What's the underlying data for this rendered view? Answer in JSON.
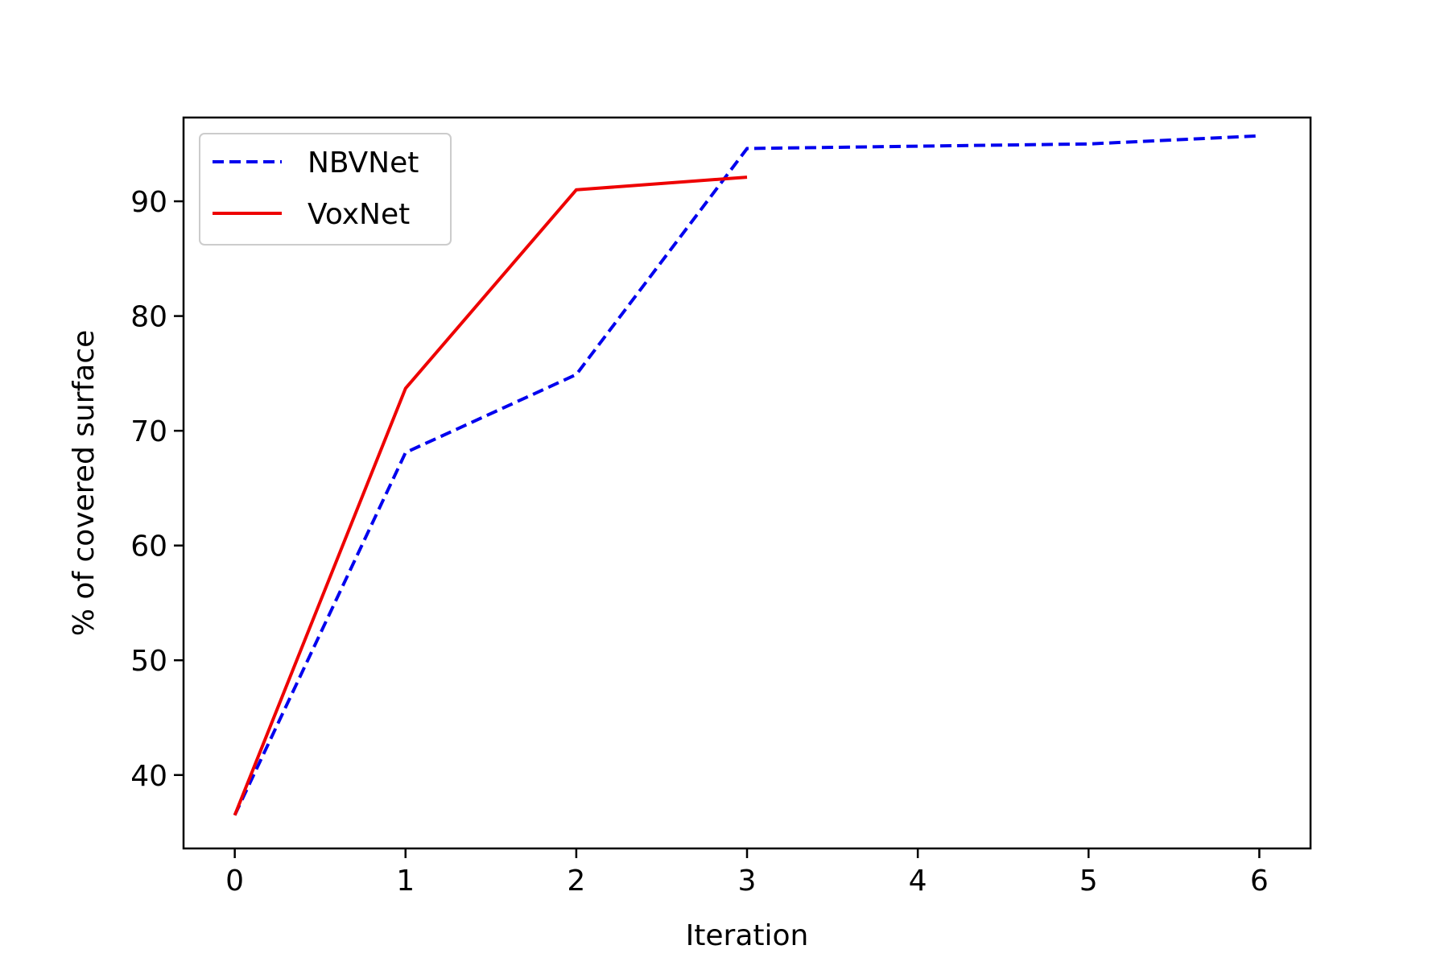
{
  "chart_data": {
    "type": "line",
    "title": "",
    "xlabel": "Iteration",
    "ylabel": "% of covered surface",
    "xlim": [
      -0.3,
      6.3
    ],
    "ylim": [
      33.6,
      97.3
    ],
    "xticks": [
      "0",
      "1",
      "2",
      "3",
      "4",
      "5",
      "6"
    ],
    "yticks": [
      "40",
      "50",
      "60",
      "70",
      "80",
      "90"
    ],
    "grid": false,
    "legend_position": "top-left",
    "series": [
      {
        "name": "NBVNet",
        "color": "#0000ee",
        "style": "dashed",
        "x": [
          0,
          1,
          2,
          3,
          4,
          5,
          6
        ],
        "y": [
          36.5,
          68.1,
          74.9,
          94.6,
          94.8,
          95.0,
          95.7
        ]
      },
      {
        "name": "VoxNet",
        "color": "#ee0000",
        "style": "solid",
        "x": [
          0,
          1,
          2,
          3
        ],
        "y": [
          36.5,
          73.7,
          91.0,
          92.1
        ]
      }
    ]
  }
}
